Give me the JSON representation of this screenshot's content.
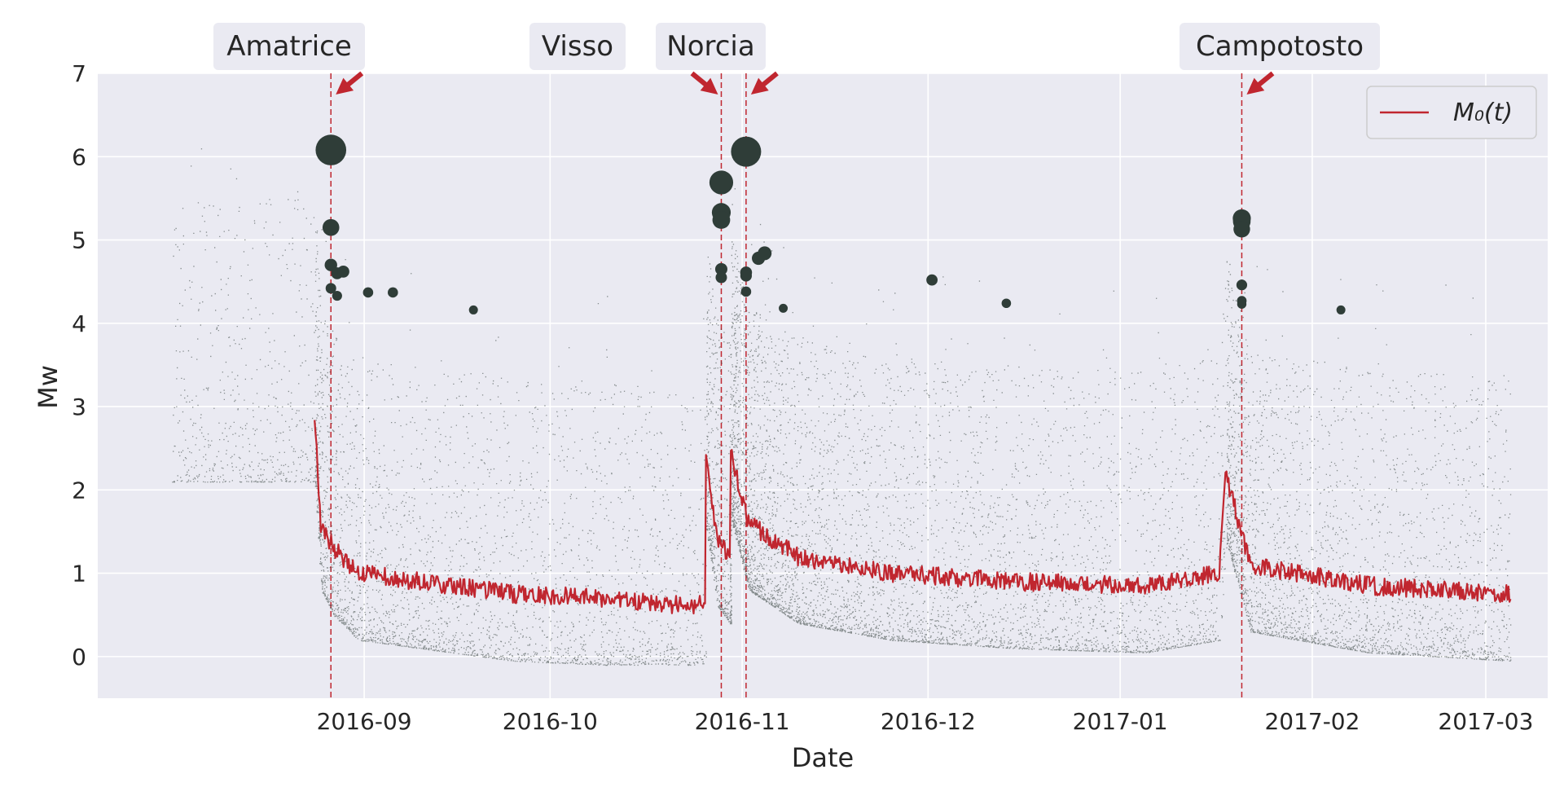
{
  "chart_data": {
    "type": "scatter",
    "xlabel": "Date",
    "ylabel": "Mw",
    "x_range": [
      "2016-07-20",
      "2017-03-11"
    ],
    "ylim": [
      -0.5,
      7
    ],
    "x_ticks": [
      "2016-09",
      "2016-10",
      "2016-11",
      "2016-12",
      "2017-01",
      "2017-02",
      "2017-03"
    ],
    "y_ticks": [
      0,
      1,
      2,
      3,
      4,
      5,
      6,
      7
    ],
    "grid": true,
    "legend_position": "top-right",
    "legend_label": "M₀(t)",
    "colors": {
      "background": "#eaeaf2",
      "grid": "#ffffff",
      "points": "#2f3d38",
      "magnitude_line": "#c0262f",
      "annotation_box": "#eaeaf2",
      "arrow": "#c0262f"
    },
    "mainshocks": [
      {
        "label": "Amatrice",
        "date": "2016-08-24",
        "mw": 6.1
      },
      {
        "label": "Visso",
        "date": "2016-10-26",
        "mw": 5.9
      },
      {
        "label": "Norcia",
        "date": "2016-10-30",
        "mw": 6.5
      },
      {
        "label": "Campotosto",
        "date": "2017-01-18",
        "mw": 5.5
      }
    ],
    "large_events": [
      {
        "date": "2016-08-24",
        "mw": 6.08
      },
      {
        "date": "2016-08-24",
        "mw": 5.15
      },
      {
        "date": "2016-08-24",
        "mw": 4.7
      },
      {
        "date": "2016-08-25",
        "mw": 4.6
      },
      {
        "date": "2016-08-26",
        "mw": 4.62
      },
      {
        "date": "2016-08-24",
        "mw": 4.42
      },
      {
        "date": "2016-08-25",
        "mw": 4.33
      },
      {
        "date": "2016-08-30",
        "mw": 4.37
      },
      {
        "date": "2016-09-03",
        "mw": 4.37
      },
      {
        "date": "2016-09-16",
        "mw": 4.16
      },
      {
        "date": "2016-10-26",
        "mw": 5.69
      },
      {
        "date": "2016-10-26",
        "mw": 5.33
      },
      {
        "date": "2016-10-26",
        "mw": 5.24
      },
      {
        "date": "2016-10-26",
        "mw": 4.65
      },
      {
        "date": "2016-10-26",
        "mw": 4.55
      },
      {
        "date": "2016-10-30",
        "mw": 6.06
      },
      {
        "date": "2016-10-30",
        "mw": 4.61
      },
      {
        "date": "2016-10-30",
        "mw": 4.57
      },
      {
        "date": "2016-10-30",
        "mw": 4.38
      },
      {
        "date": "2016-11-01",
        "mw": 4.78
      },
      {
        "date": "2016-11-02",
        "mw": 4.84
      },
      {
        "date": "2016-11-05",
        "mw": 4.18
      },
      {
        "date": "2016-11-29",
        "mw": 4.52
      },
      {
        "date": "2016-12-11",
        "mw": 4.24
      },
      {
        "date": "2017-01-18",
        "mw": 5.26
      },
      {
        "date": "2017-01-18",
        "mw": 5.22
      },
      {
        "date": "2017-01-18",
        "mw": 5.13
      },
      {
        "date": "2017-01-18",
        "mw": 4.46
      },
      {
        "date": "2017-01-18",
        "mw": 4.27
      },
      {
        "date": "2017-01-18",
        "mw": 4.23
      },
      {
        "date": "2017-02-03",
        "mw": 4.16
      }
    ],
    "m0_series": [
      {
        "date": "2016-08-24",
        "mw": 2.9
      },
      {
        "date": "2016-08-25",
        "mw": 1.6
      },
      {
        "date": "2016-08-27",
        "mw": 1.3
      },
      {
        "date": "2016-08-31",
        "mw": 1.0
      },
      {
        "date": "2016-09-10",
        "mw": 0.9
      },
      {
        "date": "2016-09-25",
        "mw": 0.75
      },
      {
        "date": "2016-10-10",
        "mw": 0.7
      },
      {
        "date": "2016-10-20",
        "mw": 0.62
      },
      {
        "date": "2016-10-26",
        "mw": 0.62
      },
      {
        "date": "2016-10-26",
        "mw": 2.4
      },
      {
        "date": "2016-10-28",
        "mw": 1.4
      },
      {
        "date": "2016-10-30",
        "mw": 1.2
      },
      {
        "date": "2016-10-30",
        "mw": 2.5
      },
      {
        "date": "2016-11-02",
        "mw": 1.6
      },
      {
        "date": "2016-11-10",
        "mw": 1.2
      },
      {
        "date": "2016-11-25",
        "mw": 1.0
      },
      {
        "date": "2016-12-15",
        "mw": 0.9
      },
      {
        "date": "2017-01-05",
        "mw": 0.85
      },
      {
        "date": "2017-01-17",
        "mw": 1.0
      },
      {
        "date": "2017-01-18",
        "mw": 2.2
      },
      {
        "date": "2017-01-22",
        "mw": 1.1
      },
      {
        "date": "2017-02-10",
        "mw": 0.85
      },
      {
        "date": "2017-03-05",
        "mw": 0.75
      }
    ]
  }
}
